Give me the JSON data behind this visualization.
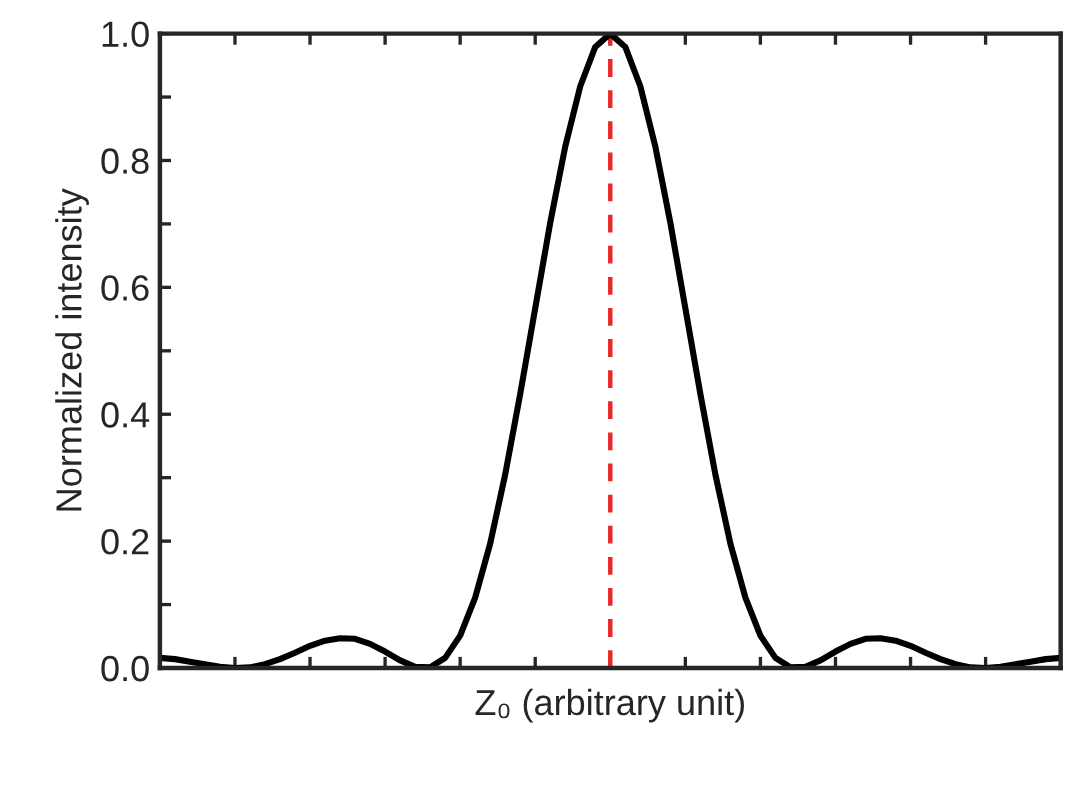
{
  "chart_data": {
    "type": "line",
    "xlabel": "Z₀ (arbitrary unit)",
    "ylabel": "Normalized intensity",
    "categories": [
      null,
      null,
      null,
      null,
      null,
      null,
      null,
      null,
      null,
      null,
      null,
      null,
      null,
      null,
      null,
      null,
      null,
      null,
      null,
      null,
      null,
      null,
      null,
      null,
      null,
      null,
      null,
      null,
      null,
      null,
      null,
      null,
      null,
      null,
      null,
      null,
      null,
      null,
      null,
      null,
      null,
      null,
      null,
      null,
      null,
      null,
      null,
      null,
      null,
      null,
      null,
      null,
      null,
      null,
      null,
      null,
      null,
      null,
      null,
      null,
      null
    ],
    "series": [
      {
        "color": "#000000",
        "values": [
          0.016,
          0.014,
          0.01,
          0.006,
          0.002,
          0.0,
          0.001,
          0.006,
          0.014,
          0.024,
          0.035,
          0.043,
          0.047,
          0.046,
          0.038,
          0.026,
          0.012,
          0.002,
          0.001,
          0.016,
          0.051,
          0.111,
          0.196,
          0.305,
          0.432,
          0.567,
          0.702,
          0.822,
          0.917,
          0.979,
          1.0,
          0.979,
          0.917,
          0.822,
          0.702,
          0.567,
          0.432,
          0.305,
          0.196,
          0.111,
          0.051,
          0.016,
          0.001,
          0.002,
          0.012,
          0.026,
          0.038,
          0.046,
          0.047,
          0.043,
          0.035,
          0.024,
          0.014,
          0.006,
          0.001,
          0.0,
          0.002,
          0.006,
          0.01,
          0.014,
          0.016
        ]
      }
    ],
    "ylim": [
      0,
      1
    ],
    "yticks": [
      {
        "value": 0,
        "label": "0.0"
      },
      {
        "value": 0.1,
        "label": null
      },
      {
        "value": 0.2,
        "label": "0.2"
      },
      {
        "value": 0.3,
        "label": null
      },
      {
        "value": 0.4,
        "label": "0.4"
      },
      {
        "value": 0.5,
        "label": null
      },
      {
        "value": 0.6,
        "label": "0.6"
      },
      {
        "value": 0.7,
        "label": null
      },
      {
        "value": 0.8,
        "label": "0.8"
      },
      {
        "value": 0.9,
        "label": null
      },
      {
        "value": 1.0,
        "label": "1.0"
      }
    ],
    "tick_labels": "y",
    "grid": false,
    "legend": false,
    "marker": "none",
    "line_style": "solid"
  }
}
